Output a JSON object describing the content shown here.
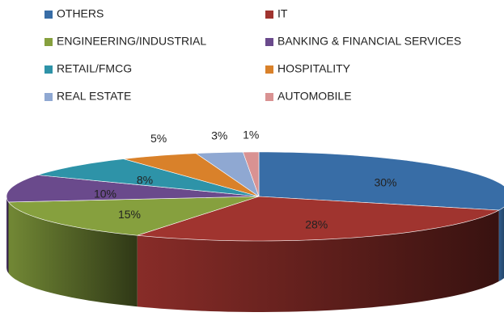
{
  "chart_data": {
    "type": "pie",
    "categories": [
      "OTHERS",
      "IT",
      "ENGINEERING/INDUSTRIAL",
      "BANKING & FINANCIAL SERVICES",
      "RETAIL/FMCG",
      "HOSPITALITY",
      "REAL ESTATE",
      "AUTOMOBILE"
    ],
    "values": [
      30,
      28,
      15,
      10,
      8,
      5,
      3,
      1
    ],
    "value_labels": [
      "30%",
      "28%",
      "15%",
      "10%",
      "8%",
      "5%",
      "3%",
      "1%"
    ],
    "colors": [
      "#386da6",
      "#a0342f",
      "#86a03e",
      "#6a4a8c",
      "#2e93a8",
      "#d9812a",
      "#8fa8d2",
      "#d99292"
    ],
    "legend": "top"
  }
}
